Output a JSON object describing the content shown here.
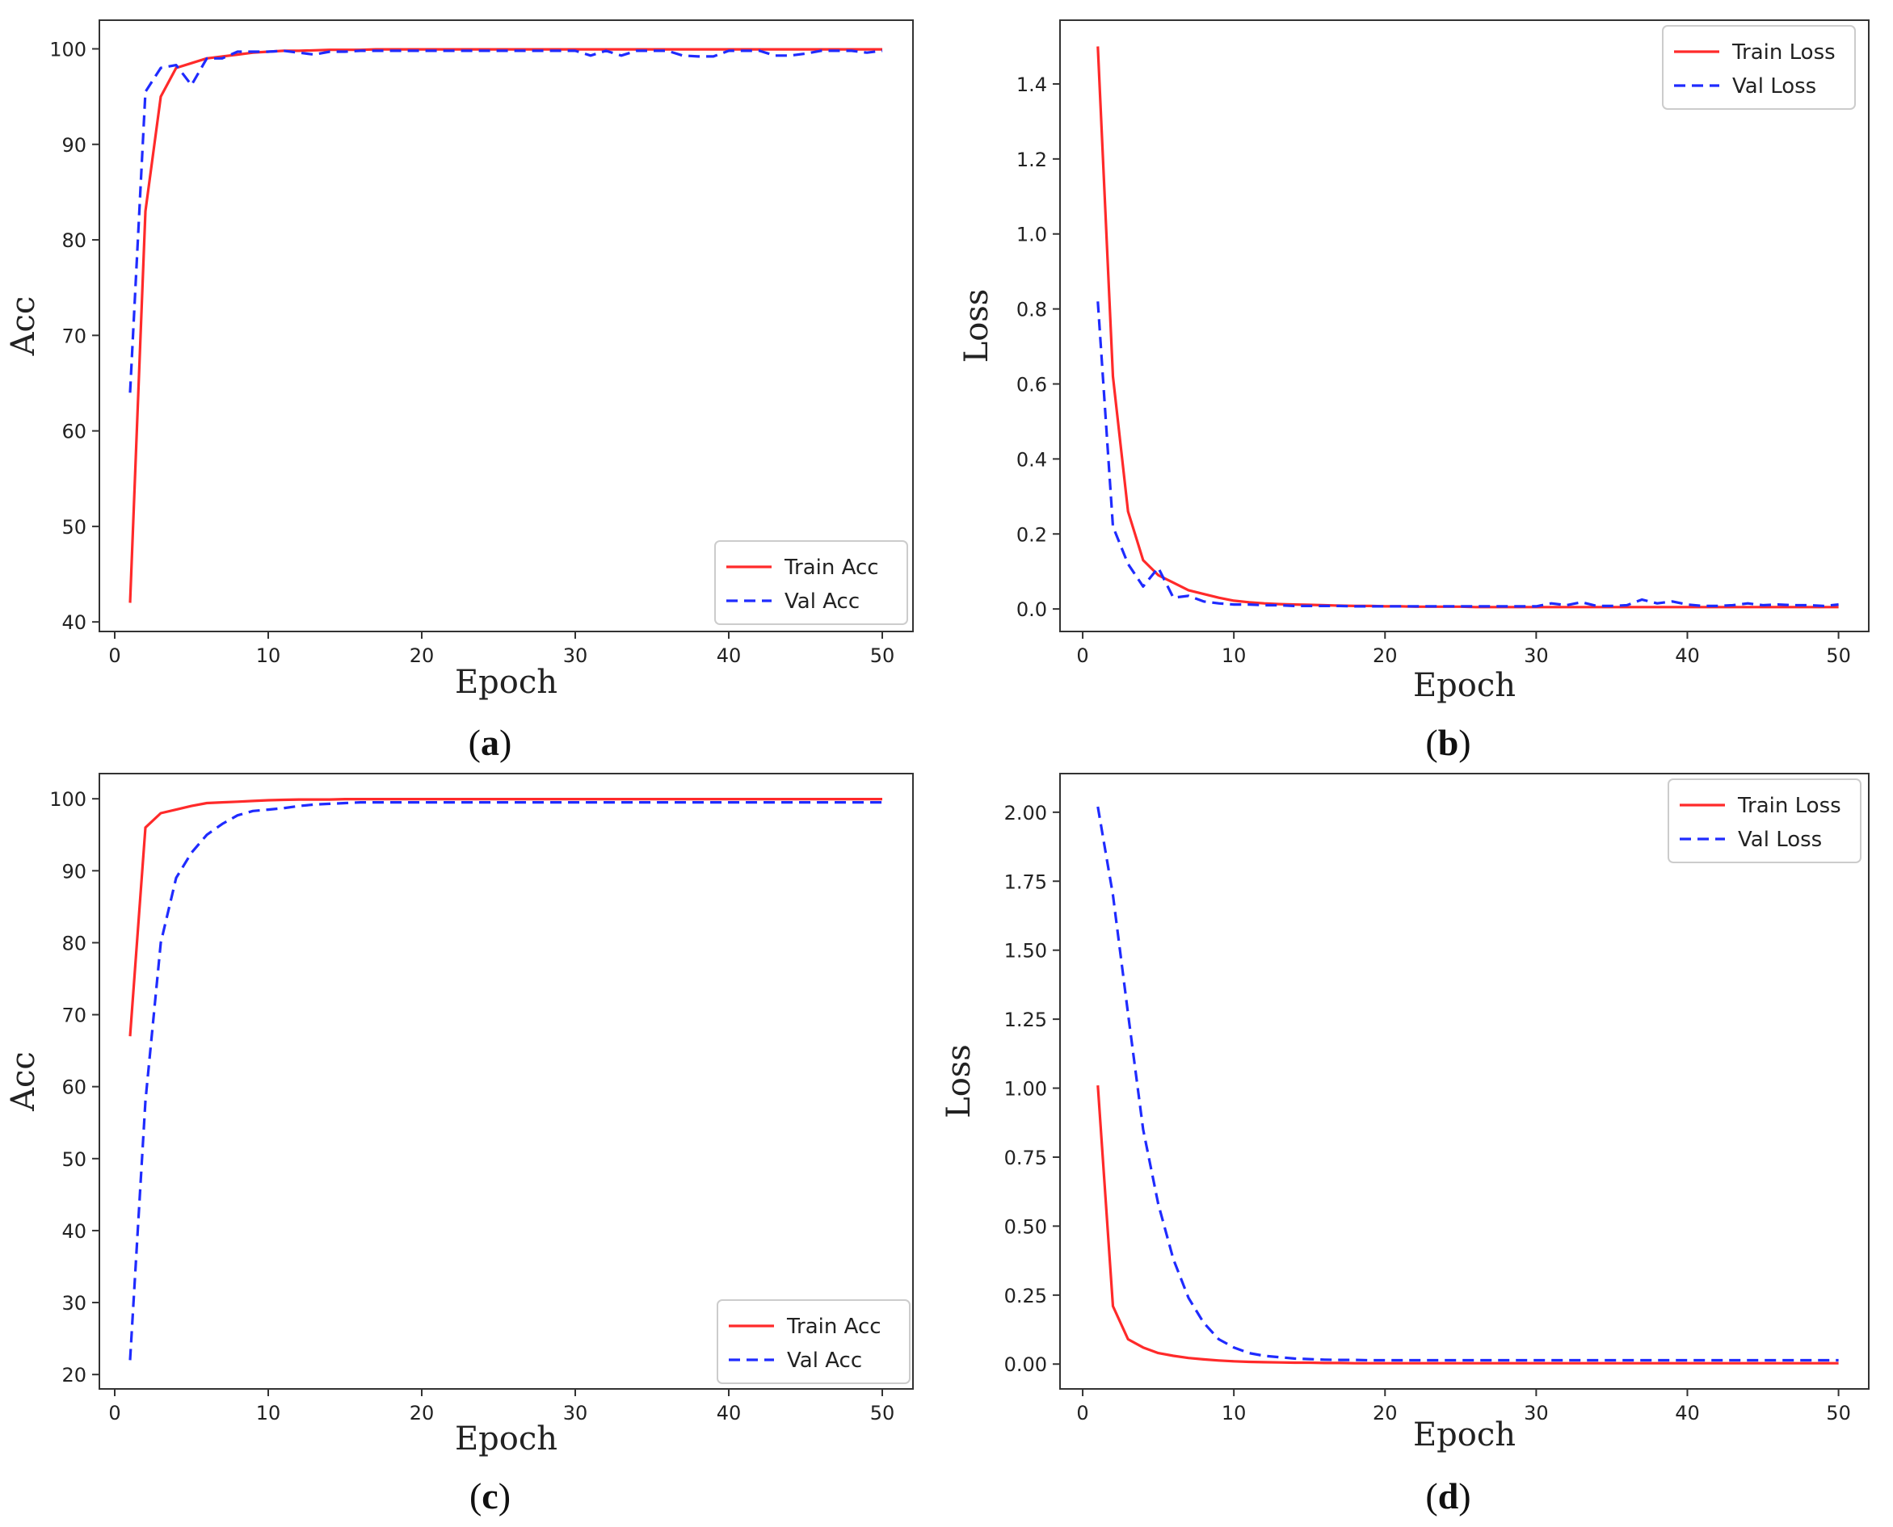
{
  "colors": {
    "train": "#ff2a2a",
    "val": "#1f2bff",
    "axis": "#333333"
  },
  "chart_data": [
    {
      "id": "a",
      "type": "line",
      "caption": {
        "open": "(",
        "letter": "a",
        "close": ")"
      },
      "xlabel": "Epoch",
      "ylabel": "Acc",
      "xlim": [
        -1,
        52
      ],
      "ylim": [
        39,
        103
      ],
      "xticks": [
        0,
        10,
        20,
        30,
        40,
        50
      ],
      "yticks": [
        40,
        50,
        60,
        70,
        80,
        90,
        100
      ],
      "legend_position": "lower-right",
      "series": [
        {
          "name": "Train Acc",
          "style": "solid",
          "color": "#ff2a2a",
          "x": [
            1,
            2,
            3,
            4,
            5,
            6,
            7,
            8,
            9,
            10,
            11,
            12,
            13,
            14,
            15,
            16,
            17,
            18,
            19,
            20,
            21,
            22,
            23,
            24,
            25,
            26,
            27,
            28,
            29,
            30,
            31,
            32,
            33,
            34,
            35,
            36,
            37,
            38,
            39,
            40,
            41,
            42,
            43,
            44,
            45,
            46,
            47,
            48,
            49,
            50
          ],
          "values": [
            42,
            83,
            95,
            98,
            98.5,
            99,
            99.2,
            99.4,
            99.6,
            99.7,
            99.8,
            99.8,
            99.85,
            99.9,
            99.9,
            99.9,
            99.95,
            99.95,
            99.95,
            99.95,
            99.95,
            99.95,
            99.95,
            99.95,
            99.95,
            99.95,
            99.95,
            99.95,
            99.95,
            99.95,
            99.95,
            99.95,
            99.95,
            99.95,
            99.95,
            99.95,
            99.95,
            99.95,
            99.95,
            99.95,
            99.95,
            99.95,
            99.95,
            99.95,
            99.95,
            99.95,
            99.95,
            99.95,
            99.95,
            99.95
          ]
        },
        {
          "name": "Val Acc",
          "style": "dashed",
          "color": "#1f2bff",
          "x": [
            1,
            2,
            3,
            4,
            5,
            6,
            7,
            8,
            9,
            10,
            11,
            12,
            13,
            14,
            15,
            16,
            17,
            18,
            19,
            20,
            21,
            22,
            23,
            24,
            25,
            26,
            27,
            28,
            29,
            30,
            31,
            32,
            33,
            34,
            35,
            36,
            37,
            38,
            39,
            40,
            41,
            42,
            43,
            44,
            45,
            46,
            47,
            48,
            49,
            50
          ],
          "values": [
            64,
            95.5,
            98,
            98.3,
            96.2,
            99,
            99,
            99.7,
            99.7,
            99.7,
            99.8,
            99.6,
            99.4,
            99.7,
            99.7,
            99.8,
            99.8,
            99.8,
            99.8,
            99.8,
            99.8,
            99.8,
            99.8,
            99.8,
            99.8,
            99.8,
            99.8,
            99.8,
            99.8,
            99.8,
            99.3,
            99.8,
            99.3,
            99.8,
            99.8,
            99.8,
            99.3,
            99.2,
            99.2,
            99.8,
            99.8,
            99.8,
            99.3,
            99.3,
            99.5,
            99.8,
            99.8,
            99.8,
            99.6,
            99.8
          ]
        }
      ]
    },
    {
      "id": "b",
      "type": "line",
      "caption": {
        "open": "(",
        "letter": "b",
        "close": ")"
      },
      "xlabel": "Epoch",
      "ylabel": "Loss",
      "xlim": [
        -1.5,
        52
      ],
      "ylim": [
        -0.06,
        1.57
      ],
      "xticks": [
        0,
        10,
        20,
        30,
        40,
        50
      ],
      "yticks": [
        0.0,
        0.2,
        0.4,
        0.6,
        0.8,
        1.0,
        1.2,
        1.4
      ],
      "ytick_labels": [
        "0.0",
        "0.2",
        "0.4",
        "0.6",
        "0.8",
        "1.0",
        "1.2",
        "1.4"
      ],
      "legend_position": "top-right",
      "series": [
        {
          "name": "Train Loss",
          "style": "solid",
          "color": "#ff2a2a",
          "x": [
            1,
            2,
            3,
            4,
            5,
            6,
            7,
            8,
            9,
            10,
            11,
            12,
            13,
            14,
            15,
            16,
            17,
            18,
            19,
            20,
            21,
            22,
            23,
            24,
            25,
            26,
            27,
            28,
            29,
            30,
            31,
            32,
            33,
            34,
            35,
            36,
            37,
            38,
            39,
            40,
            41,
            42,
            43,
            44,
            45,
            46,
            47,
            48,
            49,
            50
          ],
          "values": [
            1.5,
            0.62,
            0.26,
            0.13,
            0.09,
            0.07,
            0.05,
            0.04,
            0.03,
            0.022,
            0.018,
            0.015,
            0.013,
            0.012,
            0.011,
            0.01,
            0.009,
            0.008,
            0.008,
            0.007,
            0.007,
            0.006,
            0.006,
            0.006,
            0.006,
            0.005,
            0.005,
            0.005,
            0.005,
            0.005,
            0.005,
            0.005,
            0.005,
            0.005,
            0.005,
            0.005,
            0.005,
            0.005,
            0.005,
            0.005,
            0.005,
            0.005,
            0.005,
            0.005,
            0.005,
            0.005,
            0.005,
            0.005,
            0.005,
            0.005
          ]
        },
        {
          "name": "Val Loss",
          "style": "dashed",
          "color": "#1f2bff",
          "x": [
            1,
            2,
            3,
            4,
            5,
            6,
            7,
            8,
            9,
            10,
            11,
            12,
            13,
            14,
            15,
            16,
            17,
            18,
            19,
            20,
            21,
            22,
            23,
            24,
            25,
            26,
            27,
            28,
            29,
            30,
            31,
            32,
            33,
            34,
            35,
            36,
            37,
            38,
            39,
            40,
            41,
            42,
            43,
            44,
            45,
            46,
            47,
            48,
            49,
            50
          ],
          "values": [
            0.82,
            0.22,
            0.12,
            0.06,
            0.11,
            0.03,
            0.035,
            0.02,
            0.015,
            0.012,
            0.012,
            0.01,
            0.01,
            0.008,
            0.008,
            0.008,
            0.008,
            0.007,
            0.007,
            0.007,
            0.007,
            0.007,
            0.007,
            0.007,
            0.007,
            0.007,
            0.007,
            0.007,
            0.007,
            0.007,
            0.015,
            0.01,
            0.018,
            0.008,
            0.008,
            0.01,
            0.025,
            0.015,
            0.02,
            0.012,
            0.008,
            0.008,
            0.01,
            0.015,
            0.01,
            0.012,
            0.01,
            0.01,
            0.008,
            0.012
          ]
        }
      ]
    },
    {
      "id": "c",
      "type": "line",
      "caption": {
        "open": "(",
        "letter": "c",
        "close": ")"
      },
      "xlabel": "Epoch",
      "ylabel": "Acc",
      "xlim": [
        -1,
        52
      ],
      "ylim": [
        18,
        103.5
      ],
      "xticks": [
        0,
        10,
        20,
        30,
        40,
        50
      ],
      "yticks": [
        20,
        30,
        40,
        50,
        60,
        70,
        80,
        90,
        100
      ],
      "legend_position": "lower-right",
      "series": [
        {
          "name": "Train Acc",
          "style": "solid",
          "color": "#ff2a2a",
          "x": [
            1,
            2,
            3,
            4,
            5,
            6,
            7,
            8,
            9,
            10,
            11,
            12,
            13,
            14,
            15,
            16,
            17,
            18,
            19,
            20,
            21,
            22,
            23,
            24,
            25,
            26,
            27,
            28,
            29,
            30,
            31,
            32,
            33,
            34,
            35,
            36,
            37,
            38,
            39,
            40,
            41,
            42,
            43,
            44,
            45,
            46,
            47,
            48,
            49,
            50
          ],
          "values": [
            67,
            96,
            98,
            98.5,
            99,
            99.4,
            99.5,
            99.6,
            99.7,
            99.8,
            99.85,
            99.9,
            99.9,
            99.9,
            99.95,
            99.95,
            99.95,
            99.95,
            99.95,
            99.95,
            99.95,
            99.95,
            99.95,
            99.95,
            99.95,
            99.95,
            99.95,
            99.95,
            99.95,
            99.95,
            99.95,
            99.95,
            99.95,
            99.95,
            99.95,
            99.95,
            99.95,
            99.95,
            99.95,
            99.95,
            99.95,
            99.95,
            99.95,
            99.95,
            99.95,
            99.95,
            99.95,
            99.95,
            99.95,
            99.95
          ]
        },
        {
          "name": "Val Acc",
          "style": "dashed",
          "color": "#1f2bff",
          "x": [
            1,
            2,
            3,
            4,
            5,
            6,
            7,
            8,
            9,
            10,
            11,
            12,
            13,
            14,
            15,
            16,
            17,
            18,
            19,
            20,
            21,
            22,
            23,
            24,
            25,
            26,
            27,
            28,
            29,
            30,
            31,
            32,
            33,
            34,
            35,
            36,
            37,
            38,
            39,
            40,
            41,
            42,
            43,
            44,
            45,
            46,
            47,
            48,
            49,
            50
          ],
          "values": [
            22,
            58,
            80,
            89,
            92.5,
            95,
            96.5,
            97.7,
            98.3,
            98.5,
            98.7,
            99,
            99.2,
            99.3,
            99.4,
            99.5,
            99.5,
            99.5,
            99.5,
            99.5,
            99.5,
            99.5,
            99.5,
            99.5,
            99.5,
            99.5,
            99.5,
            99.5,
            99.5,
            99.5,
            99.5,
            99.5,
            99.5,
            99.5,
            99.5,
            99.5,
            99.5,
            99.5,
            99.5,
            99.5,
            99.5,
            99.5,
            99.5,
            99.5,
            99.5,
            99.5,
            99.5,
            99.5,
            99.5,
            99.5
          ]
        }
      ]
    },
    {
      "id": "d",
      "type": "line",
      "caption": {
        "open": "(",
        "letter": "d",
        "close": ")"
      },
      "xlabel": "Epoch",
      "ylabel": "Loss",
      "xlim": [
        -1.5,
        52
      ],
      "ylim": [
        -0.09,
        2.14
      ],
      "xticks": [
        0,
        10,
        20,
        30,
        40,
        50
      ],
      "yticks": [
        0.0,
        0.25,
        0.5,
        0.75,
        1.0,
        1.25,
        1.5,
        1.75,
        2.0
      ],
      "ytick_labels": [
        "0.00",
        "0.25",
        "0.50",
        "0.75",
        "1.00",
        "1.25",
        "1.50",
        "1.75",
        "2.00"
      ],
      "legend_position": "top-right",
      "series": [
        {
          "name": "Train Loss",
          "style": "solid",
          "color": "#ff2a2a",
          "x": [
            1,
            2,
            3,
            4,
            5,
            6,
            7,
            8,
            9,
            10,
            11,
            12,
            13,
            14,
            15,
            16,
            17,
            18,
            19,
            20,
            21,
            22,
            23,
            24,
            25,
            26,
            27,
            28,
            29,
            30,
            31,
            32,
            33,
            34,
            35,
            36,
            37,
            38,
            39,
            40,
            41,
            42,
            43,
            44,
            45,
            46,
            47,
            48,
            49,
            50
          ],
          "values": [
            1.01,
            0.21,
            0.09,
            0.06,
            0.04,
            0.03,
            0.022,
            0.017,
            0.013,
            0.01,
            0.008,
            0.007,
            0.006,
            0.005,
            0.005,
            0.004,
            0.004,
            0.003,
            0.003,
            0.003,
            0.003,
            0.003,
            0.003,
            0.003,
            0.003,
            0.003,
            0.003,
            0.003,
            0.003,
            0.003,
            0.003,
            0.003,
            0.003,
            0.003,
            0.003,
            0.003,
            0.003,
            0.003,
            0.003,
            0.003,
            0.003,
            0.003,
            0.003,
            0.003,
            0.003,
            0.003,
            0.003,
            0.003,
            0.003,
            0.003
          ]
        },
        {
          "name": "Val Loss",
          "style": "dashed",
          "color": "#1f2bff",
          "x": [
            1,
            2,
            3,
            4,
            5,
            6,
            7,
            8,
            9,
            10,
            11,
            12,
            13,
            14,
            15,
            16,
            17,
            18,
            19,
            20,
            21,
            22,
            23,
            24,
            25,
            26,
            27,
            28,
            29,
            30,
            31,
            32,
            33,
            34,
            35,
            36,
            37,
            38,
            39,
            40,
            41,
            42,
            43,
            44,
            45,
            46,
            47,
            48,
            49,
            50
          ],
          "values": [
            2.02,
            1.7,
            1.27,
            0.85,
            0.58,
            0.38,
            0.24,
            0.15,
            0.09,
            0.06,
            0.04,
            0.03,
            0.025,
            0.02,
            0.018,
            0.016,
            0.015,
            0.015,
            0.014,
            0.014,
            0.014,
            0.014,
            0.014,
            0.014,
            0.014,
            0.014,
            0.014,
            0.014,
            0.014,
            0.014,
            0.014,
            0.014,
            0.014,
            0.014,
            0.014,
            0.014,
            0.014,
            0.014,
            0.014,
            0.014,
            0.014,
            0.014,
            0.014,
            0.014,
            0.014,
            0.014,
            0.014,
            0.014,
            0.014,
            0.014
          ]
        }
      ]
    }
  ]
}
